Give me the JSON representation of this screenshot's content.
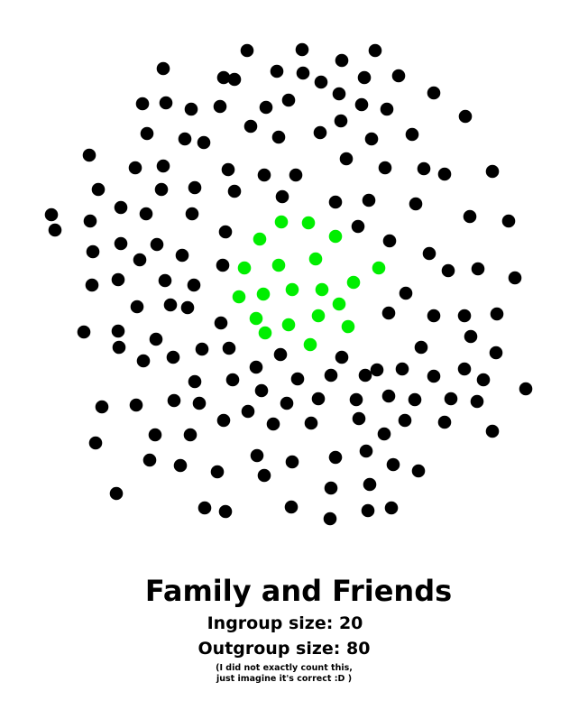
{
  "title": "Family and Friends",
  "ingroup_label": "Ingroup size: 20",
  "outgroup_label": "Outgroup size: 80",
  "note_line1": "(I did not exactly count this,",
  "note_line2": "just imagine it's correct :D )",
  "colors": {
    "ingroup": "#00ee00",
    "outgroup": "#000000",
    "background": "#ffffff"
  }
}
